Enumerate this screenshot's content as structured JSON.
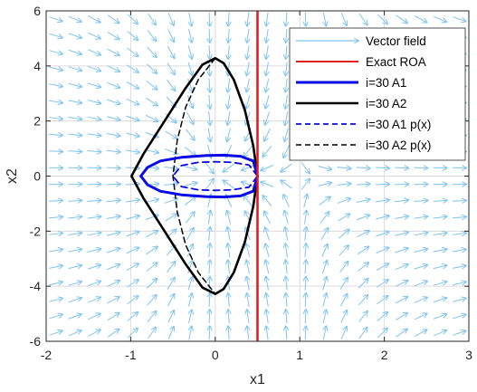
{
  "chart_data": {
    "type": "line",
    "xlabel": "x1",
    "ylabel": "x2",
    "xlim": [
      -2,
      3
    ],
    "ylim": [
      -6,
      6
    ],
    "xticks": [
      "-2",
      "-1",
      "0",
      "1",
      "2",
      "3"
    ],
    "yticks": [
      "-6",
      "-4",
      "-2",
      "0",
      "2",
      "4",
      "6"
    ],
    "grid": true,
    "legend_position": "top-right",
    "colors": {
      "vector_field": "#7fc4f0",
      "exact_roa": "#e01f1f",
      "a1": "#0a0ae6",
      "a2": "#000000"
    },
    "series": [
      {
        "name": "Vector field",
        "style": "arrows",
        "field": "dx1 = -x1 + x1^2, dx2 = -x2"
      },
      {
        "name": "Exact ROA",
        "style": "solid",
        "x": [
          0.5,
          0.5
        ],
        "y": [
          -6,
          6
        ]
      },
      {
        "name": "i=30 A1",
        "style": "solid-thick",
        "x": [
          0.5,
          0.45,
          0.3,
          0.1,
          -0.1,
          -0.4,
          -0.65,
          -0.8,
          -0.88,
          -0.8,
          -0.65,
          -0.4,
          -0.1,
          0.1,
          0.3,
          0.45,
          0.5
        ],
        "y": [
          0,
          0.55,
          0.72,
          0.76,
          0.75,
          0.68,
          0.55,
          0.32,
          0,
          -0.32,
          -0.55,
          -0.68,
          -0.75,
          -0.76,
          -0.72,
          -0.55,
          0
        ]
      },
      {
        "name": "i=30 A2",
        "style": "solid-thick",
        "x": [
          0.5,
          0.45,
          0.35,
          0.22,
          0.1,
          0.0,
          -0.15,
          -0.35,
          -0.6,
          -0.85,
          -0.99,
          -0.85,
          -0.6,
          -0.35,
          -0.15,
          0.0,
          0.1,
          0.22,
          0.35,
          0.45,
          0.5
        ],
        "y": [
          0,
          1.1,
          2.4,
          3.5,
          4.1,
          4.28,
          4.05,
          3.2,
          2.0,
          0.8,
          0,
          -0.8,
          -2.0,
          -3.2,
          -4.05,
          -4.28,
          -4.1,
          -3.5,
          -2.4,
          -1.1,
          0
        ]
      },
      {
        "name": "i=30 A1 p(x)",
        "style": "dashed",
        "x": [
          0.5,
          0.4,
          0.2,
          0.0,
          -0.2,
          -0.4,
          -0.5,
          -0.4,
          -0.2,
          0.0,
          0.2,
          0.4,
          0.5
        ],
        "y": [
          0,
          0.4,
          0.5,
          0.52,
          0.5,
          0.38,
          0,
          -0.38,
          -0.5,
          -0.52,
          -0.5,
          -0.4,
          0
        ]
      },
      {
        "name": "i=30 A2 p(x)",
        "style": "dashed",
        "x": [
          0.0,
          -0.2,
          -0.35,
          -0.45,
          -0.5,
          -0.45,
          -0.35,
          -0.2,
          0.0
        ],
        "y": [
          4.28,
          3.5,
          2.5,
          1.3,
          0,
          -1.3,
          -2.5,
          -3.5,
          -4.28
        ]
      }
    ]
  }
}
